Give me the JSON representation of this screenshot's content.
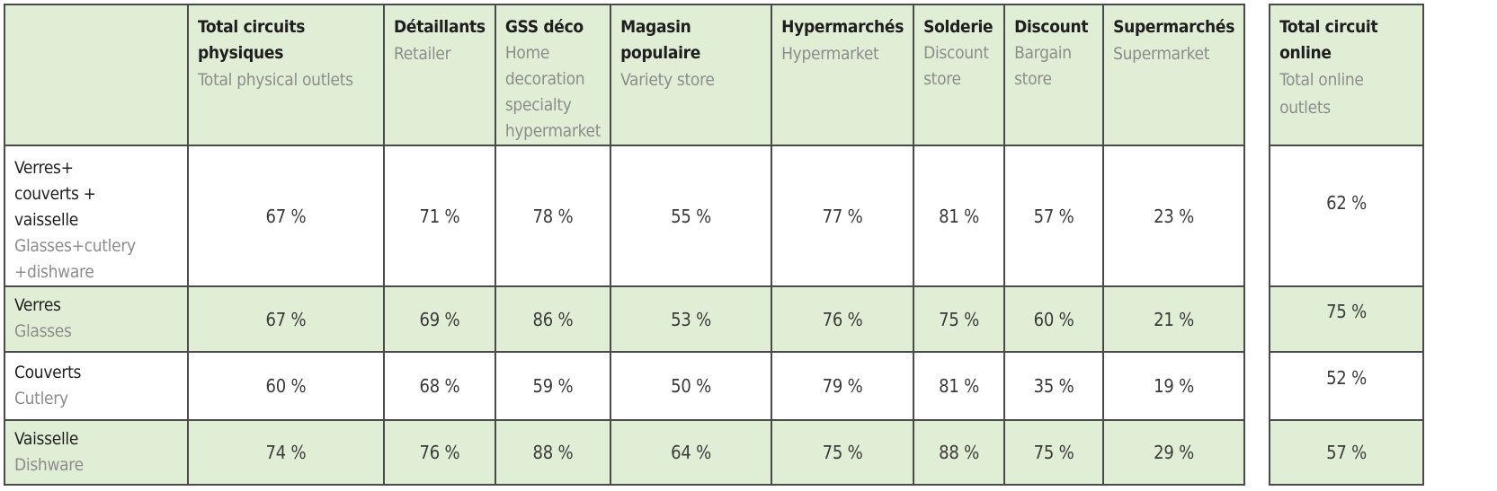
{
  "header": {
    "columns": [
      {
        "fr": "Total circuits physiques",
        "en": "Total physical outlets"
      },
      {
        "fr": "Détaillants",
        "en": "Retailer"
      },
      {
        "fr": "GSS déco",
        "en": "Home decoration specialty hypermarket"
      },
      {
        "fr": "Magasin populaire",
        "en": "Variety store"
      },
      {
        "fr": "Hypermarchés",
        "en": "Hypermarket"
      },
      {
        "fr": "Solderie",
        "en": "Discount store"
      },
      {
        "fr": "Discount",
        "en": "Bargain store"
      },
      {
        "fr": "Supermarchés",
        "en": "Supermarket"
      }
    ],
    "online": {
      "fr": "Total circuit online",
      "en": "Total online outlets"
    }
  },
  "rows": [
    {
      "fr": "Verres+ couverts + vaisselle",
      "en": "Glasses+cutlery +dishware",
      "values": [
        "67 %",
        "71 %",
        "78 %",
        "55 %",
        "77 %",
        "81 %",
        "57 %",
        "23 %"
      ],
      "online": "62 %"
    },
    {
      "fr": "Verres",
      "en": "Glasses",
      "values": [
        "67 %",
        "69 %",
        "86 %",
        "53 %",
        "76 %",
        "75 %",
        "60 %",
        "21 %"
      ],
      "online": "75 %"
    },
    {
      "fr": "Couverts",
      "en": "Cutlery",
      "values": [
        "60 %",
        "68 %",
        "59 %",
        "50 %",
        "79 %",
        "81 %",
        "35 %",
        "19 %"
      ],
      "online": "52 %"
    },
    {
      "fr": "Vaisselle",
      "en": "Dishware",
      "values": [
        "74 %",
        "76 %",
        "88 %",
        "64 %",
        "75 %",
        "88 %",
        "75 %",
        "29 %"
      ],
      "online": "57 %"
    }
  ],
  "colors": {
    "header_green": "#e1eed6",
    "border": "#4a4a4a",
    "secondary_text": "#8c8c8c"
  }
}
